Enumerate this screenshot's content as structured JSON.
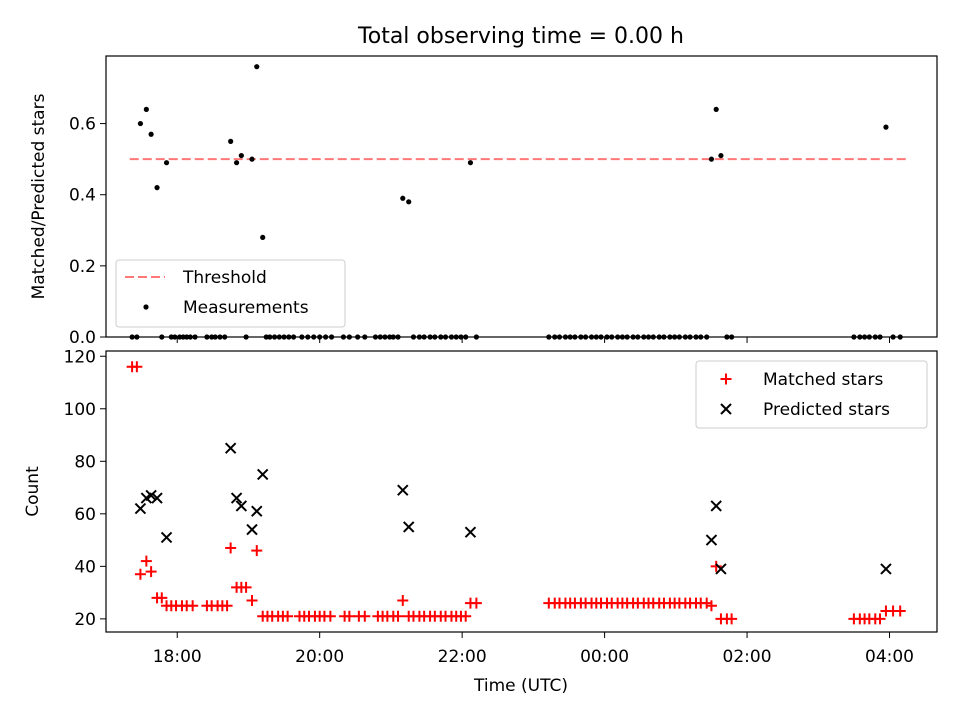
{
  "chart_data": [
    {
      "type": "scatter",
      "title": "Total observing time = 0.00 h",
      "xlabel": "",
      "ylabel": "Matched/Predicted stars",
      "xlim": [
        "17:00",
        "04:40"
      ],
      "ylim": [
        0,
        0.79
      ],
      "yticks": [
        "0.0",
        "0.2",
        "0.4",
        "0.6"
      ],
      "legend": {
        "position": "lower-left",
        "entries": [
          "Threshold",
          "Measurements"
        ]
      },
      "series": [
        {
          "name": "Threshold",
          "style": "dashed-line",
          "color": "#ff7777",
          "points": [
            [
              "17:20",
              0.5
            ],
            [
              "04:15",
              0.5
            ]
          ]
        },
        {
          "name": "Measurements",
          "style": "dot",
          "color": "#000000",
          "points": [
            [
              "17:22",
              0.0
            ],
            [
              "17:26",
              0.0
            ],
            [
              "17:29",
              0.6
            ],
            [
              "17:34",
              0.64
            ],
            [
              "17:38",
              0.57
            ],
            [
              "17:43",
              0.42
            ],
            [
              "17:47",
              0.0
            ],
            [
              "17:51",
              0.49
            ],
            [
              "17:55",
              0.0
            ],
            [
              "17:58",
              0.0
            ],
            [
              "18:02",
              0.0
            ],
            [
              "18:05",
              0.0
            ],
            [
              "18:08",
              0.0
            ],
            [
              "18:11",
              0.0
            ],
            [
              "18:15",
              0.0
            ],
            [
              "18:25",
              0.0
            ],
            [
              "18:29",
              0.0
            ],
            [
              "18:32",
              0.0
            ],
            [
              "18:36",
              0.0
            ],
            [
              "18:40",
              0.0
            ],
            [
              "18:45",
              0.55
            ],
            [
              "18:50",
              0.49
            ],
            [
              "18:54",
              0.51
            ],
            [
              "18:58",
              0.0
            ],
            [
              "19:03",
              0.5
            ],
            [
              "19:07",
              0.76
            ],
            [
              "19:12",
              0.28
            ],
            [
              "19:15",
              0.0
            ],
            [
              "19:18",
              0.0
            ],
            [
              "19:22",
              0.0
            ],
            [
              "19:26",
              0.0
            ],
            [
              "19:30",
              0.0
            ],
            [
              "19:34",
              0.0
            ],
            [
              "19:38",
              0.0
            ],
            [
              "19:45",
              0.0
            ],
            [
              "19:50",
              0.0
            ],
            [
              "19:55",
              0.0
            ],
            [
              "20:00",
              0.0
            ],
            [
              "20:05",
              0.0
            ],
            [
              "20:10",
              0.0
            ],
            [
              "20:20",
              0.0
            ],
            [
              "20:25",
              0.0
            ],
            [
              "20:32",
              0.0
            ],
            [
              "20:38",
              0.0
            ],
            [
              "20:47",
              0.0
            ],
            [
              "20:51",
              0.0
            ],
            [
              "20:55",
              0.0
            ],
            [
              "20:59",
              0.0
            ],
            [
              "21:02",
              0.0
            ],
            [
              "21:06",
              0.0
            ],
            [
              "21:10",
              0.39
            ],
            [
              "21:15",
              0.38
            ],
            [
              "21:19",
              0.0
            ],
            [
              "21:24",
              0.0
            ],
            [
              "21:28",
              0.0
            ],
            [
              "21:33",
              0.0
            ],
            [
              "21:37",
              0.0
            ],
            [
              "21:42",
              0.0
            ],
            [
              "21:46",
              0.0
            ],
            [
              "21:51",
              0.0
            ],
            [
              "21:55",
              0.0
            ],
            [
              "21:59",
              0.0
            ],
            [
              "22:03",
              0.0
            ],
            [
              "22:07",
              0.49
            ],
            [
              "22:12",
              0.0
            ],
            [
              "23:13",
              0.0
            ],
            [
              "23:18",
              0.0
            ],
            [
              "23:22",
              0.0
            ],
            [
              "23:27",
              0.0
            ],
            [
              "23:31",
              0.0
            ],
            [
              "23:35",
              0.0
            ],
            [
              "23:40",
              0.0
            ],
            [
              "23:44",
              0.0
            ],
            [
              "23:49",
              0.0
            ],
            [
              "23:53",
              0.0
            ],
            [
              "23:57",
              0.0
            ],
            [
              "00:02",
              0.0
            ],
            [
              "00:06",
              0.0
            ],
            [
              "00:11",
              0.0
            ],
            [
              "00:15",
              0.0
            ],
            [
              "00:19",
              0.0
            ],
            [
              "00:24",
              0.0
            ],
            [
              "00:28",
              0.0
            ],
            [
              "00:33",
              0.0
            ],
            [
              "00:37",
              0.0
            ],
            [
              "00:41",
              0.0
            ],
            [
              "00:46",
              0.0
            ],
            [
              "00:50",
              0.0
            ],
            [
              "00:55",
              0.0
            ],
            [
              "00:59",
              0.0
            ],
            [
              "01:03",
              0.0
            ],
            [
              "01:08",
              0.0
            ],
            [
              "01:12",
              0.0
            ],
            [
              "01:17",
              0.0
            ],
            [
              "01:21",
              0.0
            ],
            [
              "01:26",
              0.0
            ],
            [
              "01:30",
              0.5
            ],
            [
              "01:34",
              0.64
            ],
            [
              "01:38",
              0.51
            ],
            [
              "01:43",
              0.0
            ],
            [
              "01:47",
              0.0
            ],
            [
              "03:30",
              0.0
            ],
            [
              "03:35",
              0.0
            ],
            [
              "03:39",
              0.0
            ],
            [
              "03:43",
              0.0
            ],
            [
              "03:48",
              0.0
            ],
            [
              "03:52",
              0.0
            ],
            [
              "03:57",
              0.59
            ],
            [
              "04:03",
              0.0
            ],
            [
              "04:09",
              0.0
            ]
          ]
        }
      ]
    },
    {
      "type": "scatter",
      "title": "",
      "xlabel": "Time (UTC)",
      "ylabel": "Count",
      "xlim": [
        "17:00",
        "04:40"
      ],
      "ylim": [
        15,
        122
      ],
      "yticks": [
        "20",
        "40",
        "60",
        "80",
        "100",
        "120"
      ],
      "xticks": [
        "18:00",
        "20:00",
        "22:00",
        "00:00",
        "02:00",
        "04:00"
      ],
      "legend": {
        "position": "top-right",
        "entries": [
          "Matched stars",
          "Predicted stars"
        ]
      },
      "series": [
        {
          "name": "Matched stars",
          "marker": "plus",
          "color": "#ff0000",
          "points": [
            [
              "17:22",
              116
            ],
            [
              "17:26",
              116
            ],
            [
              "17:29",
              37
            ],
            [
              "17:34",
              42
            ],
            [
              "17:38",
              38
            ],
            [
              "17:43",
              28
            ],
            [
              "17:47",
              28
            ],
            [
              "17:51",
              25
            ],
            [
              "17:55",
              25
            ],
            [
              "17:59",
              25
            ],
            [
              "18:04",
              25
            ],
            [
              "18:08",
              25
            ],
            [
              "18:13",
              25
            ],
            [
              "18:25",
              25
            ],
            [
              "18:29",
              25
            ],
            [
              "18:34",
              25
            ],
            [
              "18:38",
              25
            ],
            [
              "18:42",
              25
            ],
            [
              "18:45",
              47
            ],
            [
              "18:50",
              32
            ],
            [
              "18:54",
              32
            ],
            [
              "18:58",
              32
            ],
            [
              "19:03",
              27
            ],
            [
              "19:07",
              46
            ],
            [
              "19:12",
              21
            ],
            [
              "19:16",
              21
            ],
            [
              "19:20",
              21
            ],
            [
              "19:25",
              21
            ],
            [
              "19:29",
              21
            ],
            [
              "19:33",
              21
            ],
            [
              "19:43",
              21
            ],
            [
              "19:47",
              21
            ],
            [
              "19:51",
              21
            ],
            [
              "19:56",
              21
            ],
            [
              "20:00",
              21
            ],
            [
              "20:04",
              21
            ],
            [
              "20:09",
              21
            ],
            [
              "20:21",
              21
            ],
            [
              "20:25",
              21
            ],
            [
              "20:33",
              21
            ],
            [
              "20:38",
              21
            ],
            [
              "20:49",
              21
            ],
            [
              "20:53",
              21
            ],
            [
              "20:57",
              21
            ],
            [
              "21:02",
              21
            ],
            [
              "21:06",
              21
            ],
            [
              "21:10",
              27
            ],
            [
              "21:15",
              21
            ],
            [
              "21:19",
              21
            ],
            [
              "21:24",
              21
            ],
            [
              "21:28",
              21
            ],
            [
              "21:33",
              21
            ],
            [
              "21:37",
              21
            ],
            [
              "21:42",
              21
            ],
            [
              "21:46",
              21
            ],
            [
              "21:51",
              21
            ],
            [
              "21:55",
              21
            ],
            [
              "21:59",
              21
            ],
            [
              "22:03",
              21
            ],
            [
              "22:07",
              26
            ],
            [
              "22:12",
              26
            ],
            [
              "23:13",
              26
            ],
            [
              "23:18",
              26
            ],
            [
              "23:22",
              26
            ],
            [
              "23:27",
              26
            ],
            [
              "23:31",
              26
            ],
            [
              "23:35",
              26
            ],
            [
              "23:40",
              26
            ],
            [
              "23:44",
              26
            ],
            [
              "23:49",
              26
            ],
            [
              "23:53",
              26
            ],
            [
              "23:57",
              26
            ],
            [
              "00:02",
              26
            ],
            [
              "00:06",
              26
            ],
            [
              "00:11",
              26
            ],
            [
              "00:15",
              26
            ],
            [
              "00:19",
              26
            ],
            [
              "00:24",
              26
            ],
            [
              "00:28",
              26
            ],
            [
              "00:33",
              26
            ],
            [
              "00:37",
              26
            ],
            [
              "00:41",
              26
            ],
            [
              "00:46",
              26
            ],
            [
              "00:50",
              26
            ],
            [
              "00:55",
              26
            ],
            [
              "00:59",
              26
            ],
            [
              "01:03",
              26
            ],
            [
              "01:08",
              26
            ],
            [
              "01:12",
              26
            ],
            [
              "01:17",
              26
            ],
            [
              "01:21",
              26
            ],
            [
              "01:26",
              26
            ],
            [
              "01:30",
              25
            ],
            [
              "01:34",
              40
            ],
            [
              "01:38",
              20
            ],
            [
              "01:43",
              20
            ],
            [
              "01:47",
              20
            ],
            [
              "03:30",
              20
            ],
            [
              "03:35",
              20
            ],
            [
              "03:39",
              20
            ],
            [
              "03:43",
              20
            ],
            [
              "03:48",
              20
            ],
            [
              "03:52",
              20
            ],
            [
              "03:57",
              23
            ],
            [
              "04:03",
              23
            ],
            [
              "04:09",
              23
            ]
          ]
        },
        {
          "name": "Predicted stars",
          "marker": "x",
          "color": "#000000",
          "points": [
            [
              "17:29",
              62
            ],
            [
              "17:34",
              66
            ],
            [
              "17:38",
              67
            ],
            [
              "17:43",
              66
            ],
            [
              "17:51",
              51
            ],
            [
              "18:45",
              85
            ],
            [
              "18:50",
              66
            ],
            [
              "18:54",
              63
            ],
            [
              "19:03",
              54
            ],
            [
              "19:07",
              61
            ],
            [
              "19:12",
              75
            ],
            [
              "21:10",
              69
            ],
            [
              "21:15",
              55
            ],
            [
              "22:07",
              53
            ],
            [
              "01:30",
              50
            ],
            [
              "01:34",
              63
            ],
            [
              "01:38",
              39
            ],
            [
              "03:57",
              39
            ]
          ]
        }
      ]
    }
  ]
}
